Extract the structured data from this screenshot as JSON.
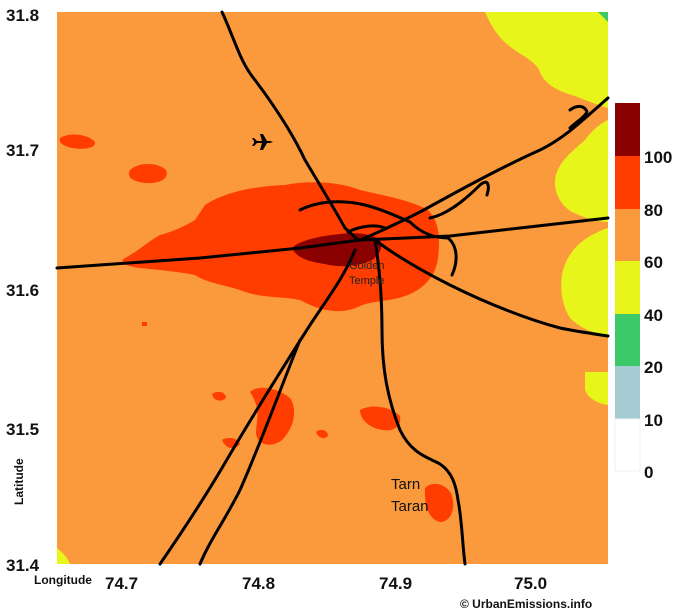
{
  "map": {
    "y_ticks": [
      "31.8",
      "31.7",
      "31.6",
      "31.5",
      "31.4"
    ],
    "x_ticks": [
      "74.7",
      "74.8",
      "74.9",
      "75.0"
    ],
    "x_label": "Longitude",
    "y_label": "Latitude",
    "places": {
      "golden_temple_line1": "Golden",
      "golden_temple_line2": "Temple",
      "tarn_taran_line1": "Tarn",
      "tarn_taran_line2": "Taran"
    },
    "credit": "© UrbanEmissions.info"
  },
  "colorbar": {
    "ticks": [
      "100",
      "80",
      "60",
      "40",
      "20",
      "10",
      "0"
    ],
    "colors": {
      "gt100": "#8b0000",
      "80_100": "#ff3d00",
      "60_80": "#fb9a3c",
      "40_60": "#e8f51a",
      "20_40": "#3cc96a",
      "10_20": "#a4ccd2",
      "0_10": "#ffffff"
    }
  }
}
